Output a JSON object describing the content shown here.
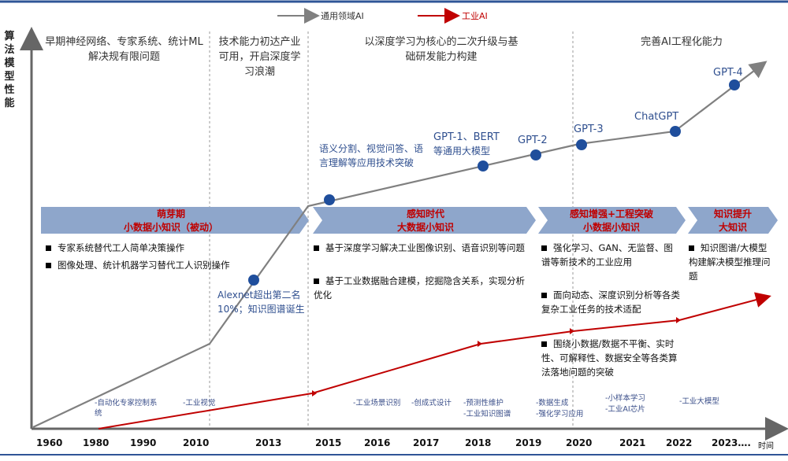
{
  "legend": [
    {
      "label": "通用领域AI",
      "color": "#808080"
    },
    {
      "label": "工业AI",
      "color": "#c00000"
    }
  ],
  "y_axis_label": "算法模型性能",
  "x_axis_label": "时间",
  "years": [
    "1960",
    "1980",
    "1990",
    "2010",
    "2013",
    "2015",
    "2016",
    "2017",
    "2018",
    "2019",
    "2020",
    "2021",
    "2022",
    "2023…."
  ],
  "eras": [
    "早期神经网络、专家系统、统计ML解决规有限问题",
    "技术能力初达产业可用，开启深度学习浪潮",
    "以深度学习为核心的二次升级与基础研发能力构建",
    "完善AI工程化能力"
  ],
  "stages": [
    {
      "title": "萌芽期",
      "subtitle": "小数据小知识（被动）"
    },
    {
      "title": "感知时代",
      "subtitle": "大数据小知识"
    },
    {
      "title": "感知增强+工程突破",
      "subtitle": "小数据小知识"
    },
    {
      "title": "知识提升",
      "subtitle": "大知识"
    }
  ],
  "bullets": {
    "stage1": [
      "专家系统替代工人简单决策操作",
      "图像处理、统计机器学习替代工人识别操作"
    ],
    "stage2": [
      "基于深度学习解决工业图像识别、语音识别等问题",
      "基于工业数据融合建模，挖掘隐含关系，实现分析优化"
    ],
    "stage3": [
      "强化学习、GAN、无监督、图谱等新技术的工业应用",
      "面向动态、深度识别分析等各类复杂工业任务的技术适配",
      "围绕小数据/数据不平衡、实时性、可解释性、数据安全等各类算法落地问题的突破"
    ],
    "stage4": [
      "知识图谱/大模型构建解决模型推理问题"
    ]
  },
  "milestones": {
    "alexnet": "Alexnet超出第二名10%；知识图谱诞生",
    "semantic": "语义分割、视觉问答、语言理解等应用技术突破",
    "gpt1": "GPT-1、BERT",
    "gpt1_sub": "等通用大模型",
    "gpt2": "GPT-2",
    "gpt3": "GPT-3",
    "chatgpt": "ChatGPT",
    "gpt4": "GPT-4"
  },
  "applications": [
    "-自动化专家控制系统",
    "-工业视觉",
    "-工业场景识别",
    "-创成式设计",
    "-预测性维护",
    "-工业知识图谱",
    "-数据生成",
    "-强化学习应用",
    "-小样本学习",
    "-工业AI芯片",
    "-工业大模型"
  ],
  "colors": {
    "general": "#808080",
    "industrial": "#c00000",
    "node": "#1f4e9c",
    "banner": "#7f96bd",
    "banner_light": "#e8edf5"
  }
}
